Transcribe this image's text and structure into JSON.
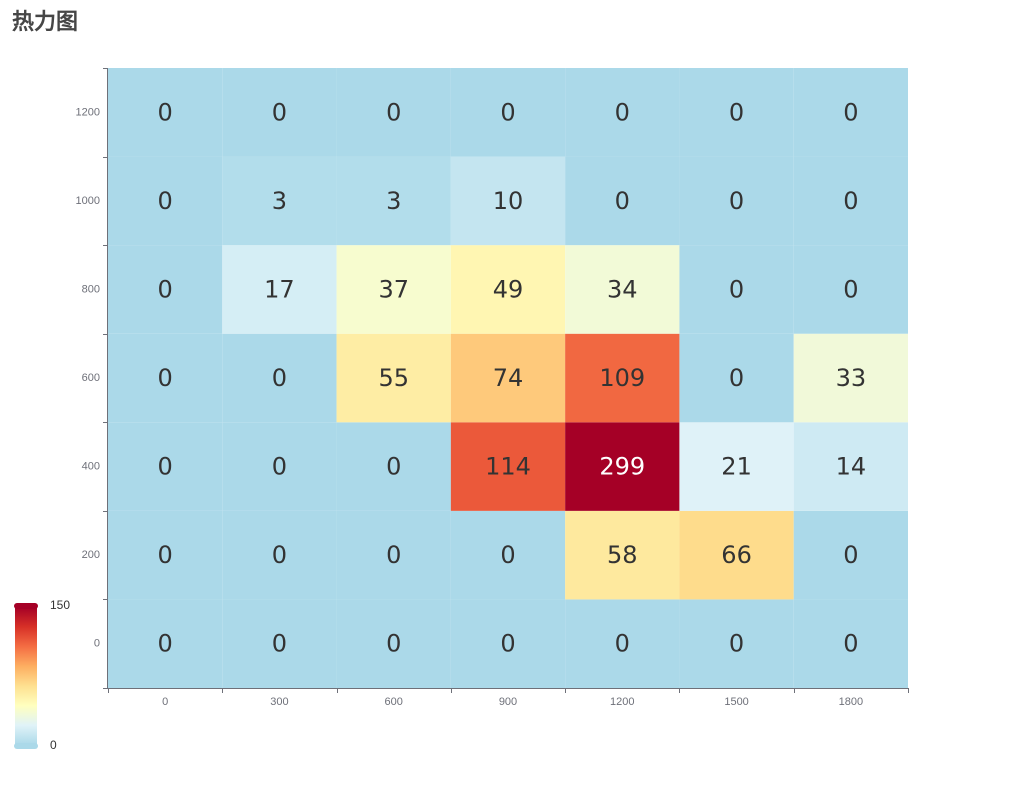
{
  "chart_data": {
    "type": "heatmap",
    "title": "热力图",
    "x_categories": [
      "0",
      "300",
      "600",
      "900",
      "1200",
      "1500",
      "1800"
    ],
    "y_categories": [
      "0",
      "200",
      "400",
      "600",
      "800",
      "1000",
      "1200"
    ],
    "values": [
      [
        0,
        0,
        0,
        0,
        0,
        0,
        0
      ],
      [
        0,
        0,
        0,
        0,
        58,
        66,
        0
      ],
      [
        0,
        0,
        0,
        114,
        299,
        21,
        14
      ],
      [
        0,
        0,
        55,
        74,
        109,
        0,
        33
      ],
      [
        0,
        17,
        37,
        49,
        34,
        0,
        0
      ],
      [
        0,
        3,
        3,
        10,
        0,
        0,
        0
      ],
      [
        0,
        0,
        0,
        0,
        0,
        0,
        0
      ]
    ],
    "visual_map": {
      "min": 0,
      "max": 150,
      "min_label": "0",
      "max_label": "150",
      "colors": [
        "#abd9e9",
        "#e0f3f8",
        "#ffffbf",
        "#fee090",
        "#fdae61",
        "#f46d43",
        "#d73027",
        "#a50026"
      ]
    },
    "label_colors": {
      "dark": "#333333",
      "light": "#ffffff"
    }
  }
}
